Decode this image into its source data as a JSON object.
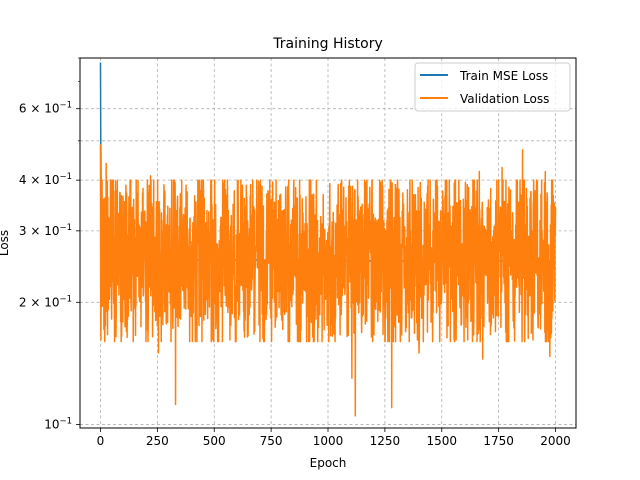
{
  "chart_data": {
    "type": "line",
    "title": "Training History",
    "xlabel": "Epoch",
    "ylabel": "Loss",
    "xlim": [
      -90,
      2090
    ],
    "ylim": [
      0.098,
      0.8
    ],
    "yscale": "log",
    "grid": true,
    "grid_style": "dashed",
    "legend_position": "top-right",
    "x_ticks": [
      0,
      250,
      500,
      750,
      1000,
      1250,
      1500,
      1750,
      2000
    ],
    "x_tick_labels": [
      "0",
      "250",
      "500",
      "750",
      "1000",
      "1250",
      "1500",
      "1750",
      "2000"
    ],
    "y_major_ticks": [
      {
        "value": 0.1,
        "label": "10",
        "exp": "−1",
        "prefix": ""
      },
      {
        "value": 0.2,
        "label": "10",
        "exp": "−1",
        "prefix": "2 × "
      },
      {
        "value": 0.3,
        "label": "10",
        "exp": "−1",
        "prefix": "3 × "
      },
      {
        "value": 0.4,
        "label": "10",
        "exp": "−1",
        "prefix": "4 × "
      },
      {
        "value": 0.6,
        "label": "10",
        "exp": "−1",
        "prefix": "6 × "
      }
    ],
    "y_minor_gridlines": [
      0.5
    ],
    "series": [
      {
        "name": "Train MSE Loss",
        "color": "#1f77b4",
        "x": [
          0,
          1,
          2,
          3,
          4,
          5,
          6,
          8,
          10,
          15,
          20,
          30,
          40,
          60,
          80,
          100,
          150,
          200,
          250,
          300,
          400,
          500,
          600,
          700,
          800,
          900,
          1000,
          1100,
          1200,
          1300,
          1400,
          1500,
          1600,
          1700,
          1800,
          1900,
          2000
        ],
        "y": [
          0.78,
          0.55,
          0.42,
          0.34,
          0.3,
          0.28,
          0.27,
          0.265,
          0.262,
          0.26,
          0.259,
          0.258,
          0.258,
          0.257,
          0.257,
          0.256,
          0.256,
          0.255,
          0.255,
          0.255,
          0.254,
          0.254,
          0.254,
          0.254,
          0.254,
          0.253,
          0.253,
          0.253,
          0.253,
          0.253,
          0.253,
          0.253,
          0.253,
          0.253,
          0.253,
          0.253,
          0.253
        ]
      },
      {
        "name": "Validation Loss",
        "color": "#ff7f0e",
        "generated": {
          "n_points": 2001,
          "x_start": 0,
          "x_end": 2000,
          "center": 0.255,
          "spread": 0.26,
          "seed": 42,
          "initial": 0.49,
          "spikes_low": [
            {
              "x": 18,
              "y": 0.168
            },
            {
              "x": 255,
              "y": 0.15
            },
            {
              "x": 330,
              "y": 0.112
            },
            {
              "x": 1105,
              "y": 0.13
            },
            {
              "x": 1120,
              "y": 0.105
            },
            {
              "x": 1280,
              "y": 0.11
            },
            {
              "x": 1400,
              "y": 0.15
            },
            {
              "x": 1680,
              "y": 0.145
            },
            {
              "x": 1975,
              "y": 0.147
            }
          ],
          "spikes_high": [
            {
              "x": 25,
              "y": 0.44
            },
            {
              "x": 220,
              "y": 0.41
            },
            {
              "x": 660,
              "y": 0.39
            },
            {
              "x": 1045,
              "y": 0.39
            },
            {
              "x": 1305,
              "y": 0.39
            },
            {
              "x": 1665,
              "y": 0.42
            },
            {
              "x": 1765,
              "y": 0.43
            },
            {
              "x": 1855,
              "y": 0.475
            },
            {
              "x": 1955,
              "y": 0.42
            }
          ]
        }
      }
    ]
  }
}
